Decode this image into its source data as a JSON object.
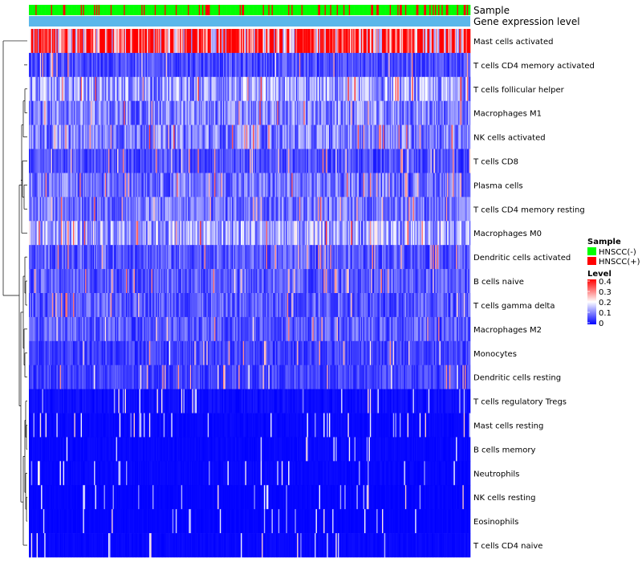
{
  "chart_data": {
    "type": "heatmap",
    "title": "",
    "annotation_rows": [
      "Sample",
      "Gene expression level"
    ],
    "rows": [
      "Mast cells activated",
      "T cells CD4 memory activated",
      "T cells follicular helper",
      "Macrophages M1",
      "NK cells activated",
      "T cells CD8",
      "Plasma cells",
      "T cells CD4 memory resting",
      "Macrophages M0",
      "Dendritic cells activated",
      "B cells naive",
      "T cells gamma delta",
      "Macrophages M2",
      "Monocytes",
      "Dendritic cells resting",
      "T cells regulatory  Tregs",
      "Mast cells resting",
      "B cells memory",
      "Neutrophils",
      "NK cells resting",
      "Eosinophils",
      "T cells CD4 naive"
    ],
    "row_mean_levels": [
      0.35,
      0.06,
      0.12,
      0.1,
      0.1,
      0.06,
      0.09,
      0.09,
      0.13,
      0.07,
      0.07,
      0.07,
      0.07,
      0.05,
      0.05,
      0.02,
      0.01,
      0.01,
      0.01,
      0.005,
      0.005,
      0.01
    ],
    "column_count": 400,
    "sample_groups": [
      {
        "name": "HNSCC(-)",
        "color": "#00ff00"
      },
      {
        "name": "HNSCC(+)",
        "color": "#ff0000"
      }
    ],
    "gene_expression_level_color": "#5bb7ea",
    "legend": {
      "sample_title": "Sample",
      "level_title": "Level",
      "level_ticks": [
        "0.4",
        "0.3",
        "0.2",
        "0.1",
        "0"
      ],
      "level_range": [
        0,
        0.4
      ],
      "colors": {
        "low": "#0000ff",
        "mid": "#ffffff",
        "high": "#ff0000"
      }
    }
  }
}
